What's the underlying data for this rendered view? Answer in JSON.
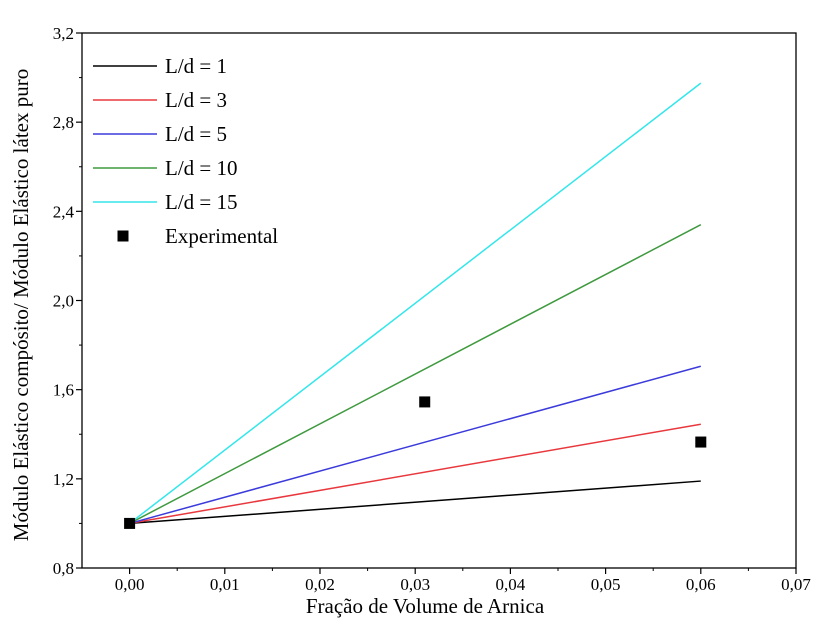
{
  "chart_data": {
    "type": "line",
    "title": "",
    "xlabel": "Fração de Volume de Arnica",
    "ylabel": "Módulo Elástico compósito/ Módulo Elástico látex puro",
    "xlim": [
      -0.005,
      0.07
    ],
    "ylim": [
      0.8,
      3.2
    ],
    "xticks": [
      0.0,
      0.01,
      0.02,
      0.03,
      0.04,
      0.05,
      0.06,
      0.07
    ],
    "xtick_labels": [
      "0,00",
      "0,01",
      "0,02",
      "0,03",
      "0,04",
      "0,05",
      "0,06",
      "0,07"
    ],
    "yticks": [
      0.8,
      1.2,
      1.6,
      2.0,
      2.4,
      2.8,
      3.2
    ],
    "ytick_labels": [
      "0,8",
      "1,2",
      "1,6",
      "2,0",
      "2,4",
      "2,8",
      "3,2"
    ],
    "grid": false,
    "legend_position": "top-left",
    "series": [
      {
        "name": "L/d = 1",
        "kind": "line",
        "color": "#000000",
        "x": [
          0.0,
          0.06
        ],
        "y": [
          1.0,
          1.19
        ]
      },
      {
        "name": "L/d = 3",
        "kind": "line",
        "color": "#e8383d",
        "x": [
          0.0,
          0.06
        ],
        "y": [
          1.0,
          1.445
        ]
      },
      {
        "name": "L/d = 5",
        "kind": "line",
        "color": "#3b3bdb",
        "x": [
          0.0,
          0.06
        ],
        "y": [
          1.0,
          1.705
        ]
      },
      {
        "name": "L/d = 10",
        "kind": "line",
        "color": "#3f9a3f",
        "x": [
          0.0,
          0.06
        ],
        "y": [
          1.0,
          2.34
        ]
      },
      {
        "name": "L/d = 15",
        "kind": "line",
        "color": "#33e6ea",
        "x": [
          0.0,
          0.06
        ],
        "y": [
          1.0,
          2.975
        ]
      },
      {
        "name": "Experimental",
        "kind": "scatter",
        "color": "#000000",
        "x": [
          0.0,
          0.031,
          0.06
        ],
        "y": [
          1.0,
          1.545,
          1.365
        ]
      }
    ]
  }
}
